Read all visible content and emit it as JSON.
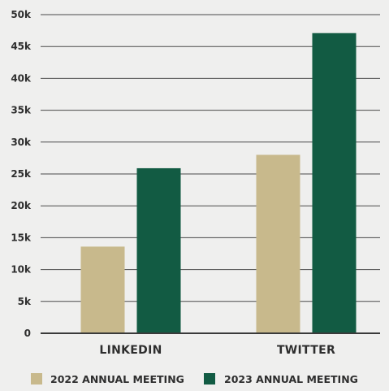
{
  "chart_data": {
    "type": "bar",
    "categories": [
      "LINKEDIN",
      "TWITTER"
    ],
    "series": [
      {
        "name": "2022 ANNUAL MEETING",
        "values": [
          13600,
          28000
        ],
        "color": "#c8b98c"
      },
      {
        "name": "2023 ANNUAL MEETING",
        "values": [
          25900,
          47100
        ],
        "color": "#125b43"
      }
    ],
    "ylim": [
      0,
      50000
    ],
    "y_ticks": [
      0,
      5000,
      10000,
      15000,
      20000,
      25000,
      30000,
      35000,
      40000,
      45000,
      50000
    ],
    "y_tick_labels": [
      "0",
      "5k",
      "10k",
      "15k",
      "20k",
      "25k",
      "30k",
      "35k",
      "40k",
      "45k",
      "50k"
    ],
    "grid": true,
    "legend_position": "bottom",
    "title": "",
    "xlabel": "",
    "ylabel": ""
  },
  "colors": {
    "background": "#efefee",
    "grid": "#4a4a4a",
    "axis": "#3a3a3a",
    "text": "#2e2e2e"
  }
}
